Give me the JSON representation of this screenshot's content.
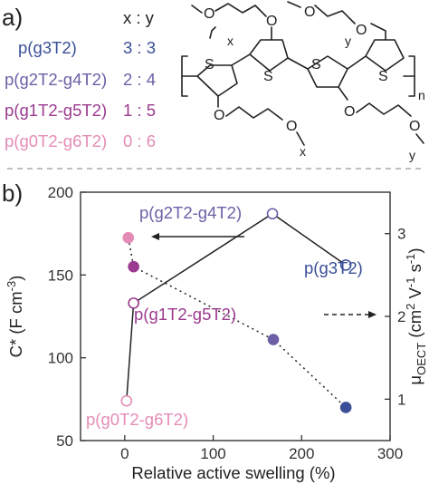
{
  "panel_a": {
    "label": "a)",
    "xy_header": "x : y",
    "polymers": [
      {
        "name": "p(g3T2)",
        "ratio": "3 : 3",
        "color": "#3a4f97"
      },
      {
        "name": "p(g2T2-g4T2)",
        "ratio": "2 : 4",
        "color": "#6d5fa6"
      },
      {
        "name": "p(g1T2-g5T2)",
        "ratio": "1 : 5",
        "color": "#9b3a8e"
      },
      {
        "name": "p(g0T2-g6T2)",
        "ratio": "0 : 6",
        "color": "#e58cb6"
      }
    ],
    "structure": {
      "sulfur": "S",
      "oxygen": "O",
      "sub_x": "x",
      "sub_y": "y",
      "sub_n": "n"
    }
  },
  "panel_b": {
    "label": "b)"
  },
  "chart_data": {
    "type": "scatter",
    "xlabel": "Relative active swelling (%)",
    "ylabel_left": "C* (F cm-3)",
    "ylabel_right": "μOECT (cm2 V-1 s-1)",
    "xlim": [
      -50,
      300
    ],
    "ylim_left": [
      50,
      200
    ],
    "ylim_right": [
      0.5,
      3.5
    ],
    "x_ticks": [
      0,
      100,
      200,
      300
    ],
    "y_left_ticks": [
      50,
      100,
      150,
      200
    ],
    "y_right_ticks": [
      1,
      2,
      3
    ],
    "grid": false,
    "series": [
      {
        "style": "open circles, solid line",
        "axis": "left",
        "points": [
          {
            "label": "p(g0T2-g6T2)",
            "x": 2,
            "y": 74,
            "color": "#e58cb6"
          },
          {
            "label": "p(g1T2-g5T2)",
            "x": 10,
            "y": 133,
            "color": "#9b3a8e"
          },
          {
            "label": "p(g2T2-g4T2)",
            "x": 167,
            "y": 187,
            "color": "#6d5fa6"
          },
          {
            "label": "p(g3T2)",
            "x": 250,
            "y": 156,
            "color": "#3a4f97"
          }
        ]
      },
      {
        "style": "filled circles, dotted line",
        "axis": "right",
        "points": [
          {
            "label": "p(g0T2-g6T2)",
            "x": 4,
            "y": 2.95,
            "color": "#e58cb6"
          },
          {
            "label": "p(g1T2-g5T2)",
            "x": 10,
            "y": 2.6,
            "color": "#9b3a8e"
          },
          {
            "label": "p(g2T2-g4T2)",
            "x": 168,
            "y": 1.72,
            "color": "#6d5fa6"
          },
          {
            "label": "p(g3T2)",
            "x": 250,
            "y": 0.9,
            "color": "#3a4f97"
          }
        ]
      }
    ],
    "annotations": [
      {
        "text": "p(g2T2-g4T2)",
        "color": "#6d5fa6"
      },
      {
        "text": "p(g3T2)",
        "color": "#3a4f97"
      },
      {
        "text": "p(g1T2-g5T2)",
        "color": "#9b3a8e"
      },
      {
        "text": "p(g0T2-g6T2)",
        "color": "#e58cb6"
      }
    ],
    "arrows": [
      {
        "points_to": "left axis",
        "style": "solid"
      },
      {
        "points_to": "right axis",
        "style": "dashed"
      }
    ]
  }
}
